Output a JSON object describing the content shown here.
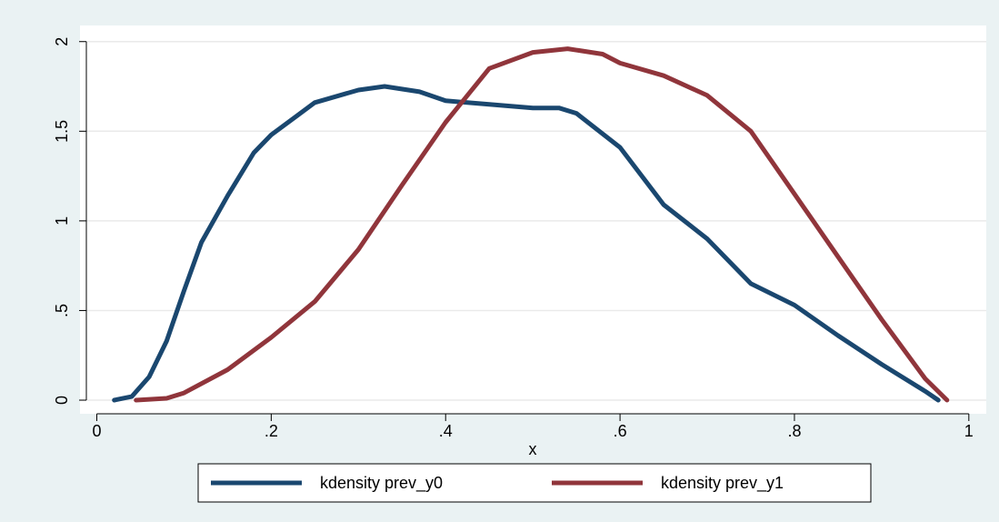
{
  "chart_data": {
    "type": "line",
    "x_label": "x",
    "xlim": [
      -0.012,
      1.02
    ],
    "ylim": [
      -0.076,
      2.09
    ],
    "xticks": [
      0,
      {
        "value": 0.2,
        "label": ".2"
      },
      {
        "value": 0.4,
        "label": ".4"
      },
      {
        "value": 0.6,
        "label": ".6"
      },
      {
        "value": 0.8,
        "label": ".8"
      },
      1
    ],
    "yticks": [
      0,
      {
        "value": 0.5,
        "label": ".5"
      },
      1,
      1.5,
      2
    ],
    "grid": true,
    "legend": "bottom",
    "series": [
      {
        "name": "kdensity prev_y0",
        "color": "#1a476f",
        "x": [
          0.02,
          0.04,
          0.06,
          0.08,
          0.1,
          0.12,
          0.15,
          0.18,
          0.2,
          0.25,
          0.3,
          0.33,
          0.37,
          0.4,
          0.45,
          0.5,
          0.53,
          0.55,
          0.6,
          0.65,
          0.7,
          0.75,
          0.8,
          0.85,
          0.9,
          0.95,
          0.965
        ],
        "values": [
          0,
          0.02,
          0.13,
          0.33,
          0.61,
          0.88,
          1.14,
          1.38,
          1.48,
          1.66,
          1.73,
          1.75,
          1.72,
          1.67,
          1.65,
          1.63,
          1.63,
          1.6,
          1.41,
          1.09,
          0.9,
          0.65,
          0.53,
          0.36,
          0.2,
          0.05,
          0
        ]
      },
      {
        "name": "kdensity prev_y1",
        "color": "#90353b",
        "x": [
          0.045,
          0.08,
          0.1,
          0.15,
          0.2,
          0.25,
          0.3,
          0.35,
          0.4,
          0.45,
          0.5,
          0.54,
          0.58,
          0.6,
          0.65,
          0.7,
          0.75,
          0.8,
          0.85,
          0.9,
          0.95,
          0.975
        ],
        "values": [
          0,
          0.01,
          0.04,
          0.17,
          0.35,
          0.55,
          0.84,
          1.2,
          1.55,
          1.85,
          1.94,
          1.96,
          1.93,
          1.88,
          1.81,
          1.7,
          1.5,
          1.15,
          0.8,
          0.45,
          0.12,
          0
        ]
      }
    ]
  }
}
